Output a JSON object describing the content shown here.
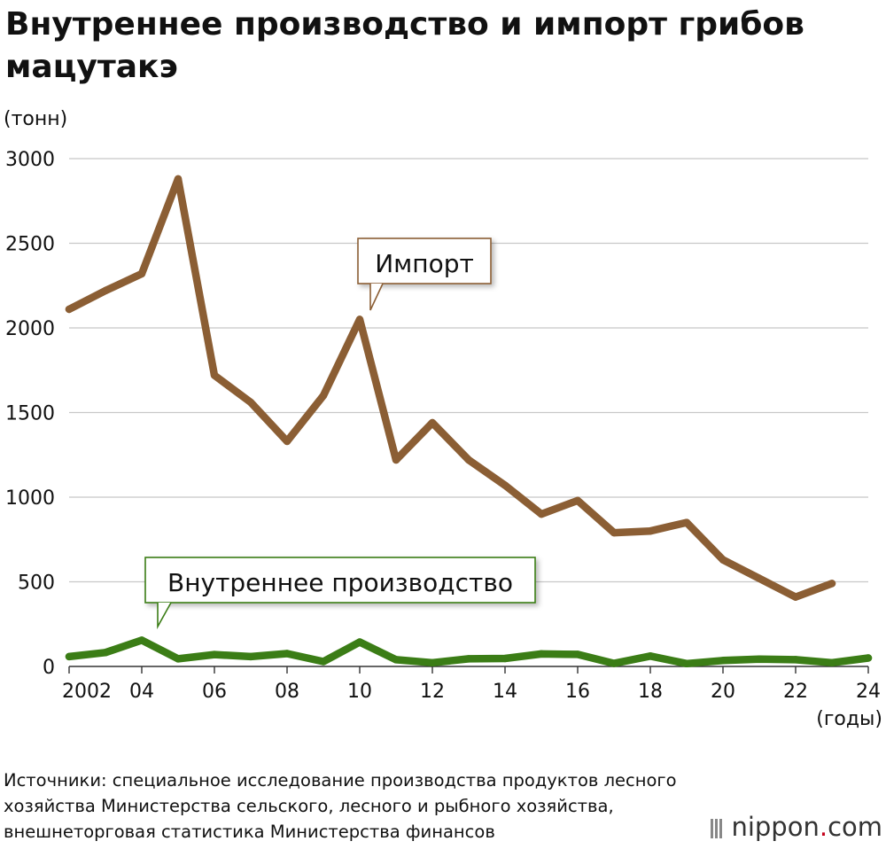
{
  "title": "Внутреннее производство и импорт грибов мацутакэ",
  "source": "Источники: специальное исследование производства продуктов лесного хозяйства Министерства сельского, лесного и рыбного хозяйства, внешнеторговая статистика Министерства финансов",
  "logo": {
    "name": "nippon",
    "dot": ".",
    "tld": "com"
  },
  "chart_data": {
    "type": "line",
    "title": "Внутреннее производство и импорт грибов мацутакэ",
    "ylabel": "(тонн)",
    "xlabel": "(годы)",
    "ylim": [
      0,
      3000
    ],
    "xlim": [
      2002,
      2024
    ],
    "yticks": [
      0,
      500,
      1000,
      1500,
      2000,
      2500,
      3000
    ],
    "xticks": [
      {
        "value": 2002,
        "label": "2002"
      },
      {
        "value": 2004,
        "label": "04"
      },
      {
        "value": 2006,
        "label": "06"
      },
      {
        "value": 2008,
        "label": "08"
      },
      {
        "value": 2010,
        "label": "10"
      },
      {
        "value": 2012,
        "label": "12"
      },
      {
        "value": 2014,
        "label": "14"
      },
      {
        "value": 2016,
        "label": "16"
      },
      {
        "value": 2018,
        "label": "18"
      },
      {
        "value": 2020,
        "label": "20"
      },
      {
        "value": 2022,
        "label": "22"
      },
      {
        "value": 2024,
        "label": "24"
      }
    ],
    "grid": true,
    "series": [
      {
        "name": "Импорт",
        "color": "#8b5e34",
        "x": [
          2002,
          2003,
          2004,
          2005,
          2006,
          2007,
          2008,
          2009,
          2010,
          2011,
          2012,
          2013,
          2014,
          2015,
          2016,
          2017,
          2018,
          2019,
          2020,
          2021,
          2022,
          2023
        ],
        "values": [
          2110,
          2220,
          2320,
          2880,
          1720,
          1560,
          1330,
          1600,
          2050,
          1220,
          1440,
          1220,
          1070,
          900,
          980,
          790,
          800,
          850,
          630,
          520,
          410,
          490
        ]
      },
      {
        "name": "Внутреннее производство",
        "color": "#3b7d16",
        "x": [
          2002,
          2003,
          2004,
          2005,
          2006,
          2007,
          2008,
          2009,
          2010,
          2011,
          2012,
          2013,
          2014,
          2015,
          2016,
          2017,
          2018,
          2019,
          2020,
          2021,
          2022,
          2023,
          2024
        ],
        "values": [
          58,
          82,
          155,
          45,
          70,
          58,
          76,
          29,
          144,
          40,
          22,
          45,
          47,
          74,
          71,
          18,
          61,
          17,
          35,
          43,
          40,
          22,
          50
        ]
      }
    ],
    "annotations": [
      {
        "series": 0,
        "text": "Импорт",
        "x": 2010
      },
      {
        "series": 1,
        "text": "Внутреннее производство",
        "x": 2004
      }
    ]
  }
}
